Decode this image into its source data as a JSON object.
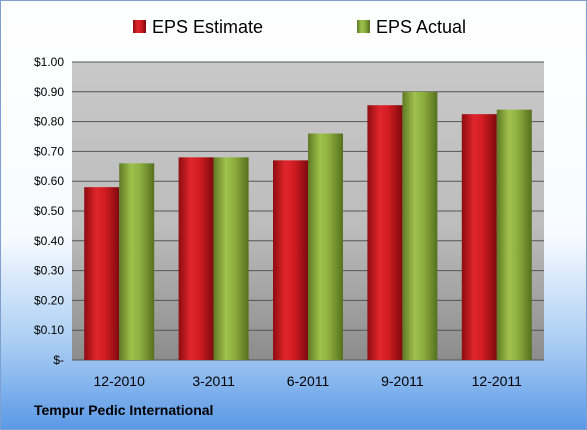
{
  "chart_data": {
    "type": "bar",
    "categories": [
      "12-2010",
      "3-2011",
      "6-2011",
      "9-2011",
      "12-2011"
    ],
    "series": [
      {
        "name": "EPS Estimate",
        "values": [
          0.58,
          0.68,
          0.67,
          0.855,
          0.825
        ],
        "color": "#c0141a"
      },
      {
        "name": "EPS Actual",
        "values": [
          0.66,
          0.68,
          0.76,
          0.9,
          0.84
        ],
        "color": "#86a83a"
      }
    ],
    "ylim": [
      0,
      1.0
    ],
    "yticks": [
      {
        "value": 0.0,
        "label": "$-"
      },
      {
        "value": 0.1,
        "label": "$0.10"
      },
      {
        "value": 0.2,
        "label": "$0.20"
      },
      {
        "value": 0.3,
        "label": "$0.30"
      },
      {
        "value": 0.4,
        "label": "$0.40"
      },
      {
        "value": 0.5,
        "label": "$0.50"
      },
      {
        "value": 0.6,
        "label": "$0.60"
      },
      {
        "value": 0.7,
        "label": "$0.70"
      },
      {
        "value": 0.8,
        "label": "$0.80"
      },
      {
        "value": 0.9,
        "label": "$0.90"
      },
      {
        "value": 1.0,
        "label": "$1.00"
      }
    ],
    "grid": true,
    "legend_position": "top"
  },
  "footer": {
    "company": "Tempur Pedic International"
  }
}
